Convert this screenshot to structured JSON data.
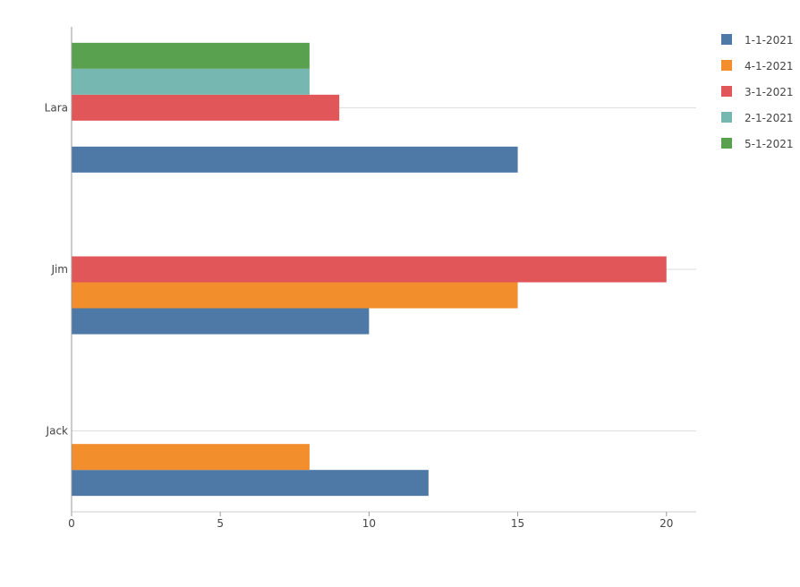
{
  "chart_data": {
    "type": "bar",
    "orientation": "horizontal",
    "categories": [
      "Jack",
      "Jim",
      "Lara"
    ],
    "xlim": [
      0,
      21
    ],
    "x_ticks": [
      0,
      5,
      10,
      15,
      20
    ],
    "grid": "y-axis-lines",
    "legend_position": "top-right",
    "series": [
      {
        "name": "1-1-2021",
        "color": "#4e79a7",
        "values": [
          12,
          10,
          15
        ]
      },
      {
        "name": "4-1-2021",
        "color": "#f28e2b",
        "values": [
          8,
          15,
          null
        ]
      },
      {
        "name": "3-1-2021",
        "color": "#e15759",
        "values": [
          null,
          20,
          9
        ]
      },
      {
        "name": "2-1-2021",
        "color": "#76b7b2",
        "values": [
          null,
          null,
          8
        ]
      },
      {
        "name": "5-1-2021",
        "color": "#59a14f",
        "values": [
          null,
          null,
          8
        ]
      }
    ]
  }
}
